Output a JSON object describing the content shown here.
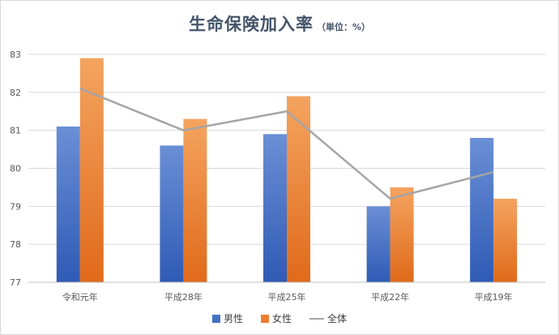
{
  "chart_data": {
    "type": "bar",
    "title": "生命保険加入率",
    "title_unit": "（単位：%）",
    "categories": [
      "令和元年",
      "平成28年",
      "平成25年",
      "平成22年",
      "平成19年"
    ],
    "series": [
      {
        "name": "男性",
        "kind": "bar",
        "color": "#4472c4",
        "values": [
          81.1,
          80.6,
          80.9,
          79.0,
          80.8
        ]
      },
      {
        "name": "女性",
        "kind": "bar",
        "color": "#ed7d31",
        "values": [
          82.9,
          81.3,
          81.9,
          79.5,
          79.2
        ]
      },
      {
        "name": "全体",
        "kind": "line",
        "color": "#a5a5a5",
        "values": [
          82.1,
          81.0,
          81.5,
          79.2,
          79.9
        ]
      }
    ],
    "ylim": [
      77,
      83
    ],
    "yticks": [
      77,
      78,
      79,
      80,
      81,
      82,
      83
    ],
    "grid": true,
    "legend": "bottom"
  }
}
